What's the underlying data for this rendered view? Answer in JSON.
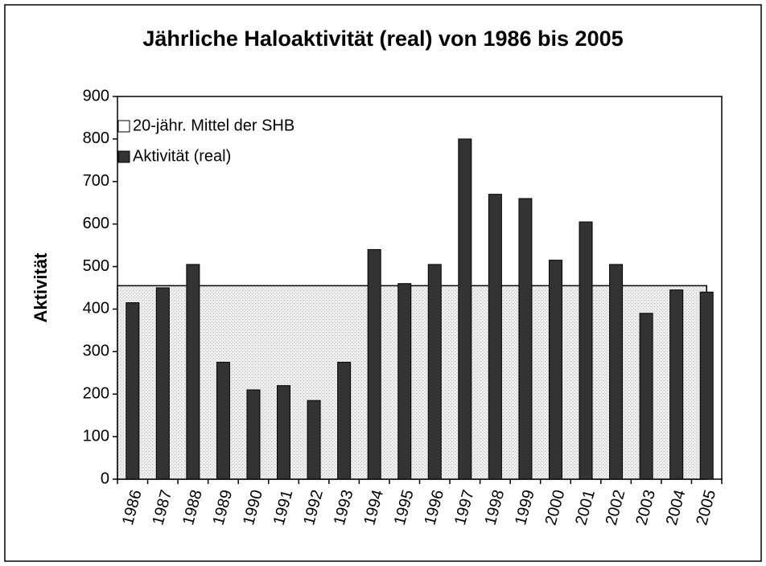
{
  "chart_data": {
    "type": "bar",
    "title": "Jährliche Haloaktivität (real) von 1986 bis 2005",
    "y_label": "Aktivität",
    "categories": [
      "1986",
      "1987",
      "1988",
      "1989",
      "1990",
      "1991",
      "1992",
      "1993",
      "1994",
      "1995",
      "1996",
      "1997",
      "1998",
      "1999",
      "2000",
      "2001",
      "2002",
      "2003",
      "2004",
      "2005"
    ],
    "series": [
      {
        "name": "20-jähr. Mittel der SHB",
        "type": "area",
        "color": "#e6e6e6",
        "values": [
          455,
          455,
          455,
          455,
          455,
          455,
          455,
          455,
          455,
          455,
          455,
          455,
          455,
          455,
          455,
          455,
          455,
          455,
          455,
          455
        ]
      },
      {
        "name": "Aktivität (real)",
        "type": "bar",
        "color": "#333333",
        "values": [
          415,
          450,
          505,
          275,
          210,
          220,
          185,
          275,
          540,
          460,
          505,
          800,
          670,
          660,
          515,
          605,
          505,
          390,
          445,
          440
        ]
      }
    ],
    "ylim": [
      0,
      900
    ],
    "yticks": [
      0,
      100,
      200,
      300,
      400,
      500,
      600,
      700,
      800,
      900
    ],
    "legend": "top-left"
  }
}
